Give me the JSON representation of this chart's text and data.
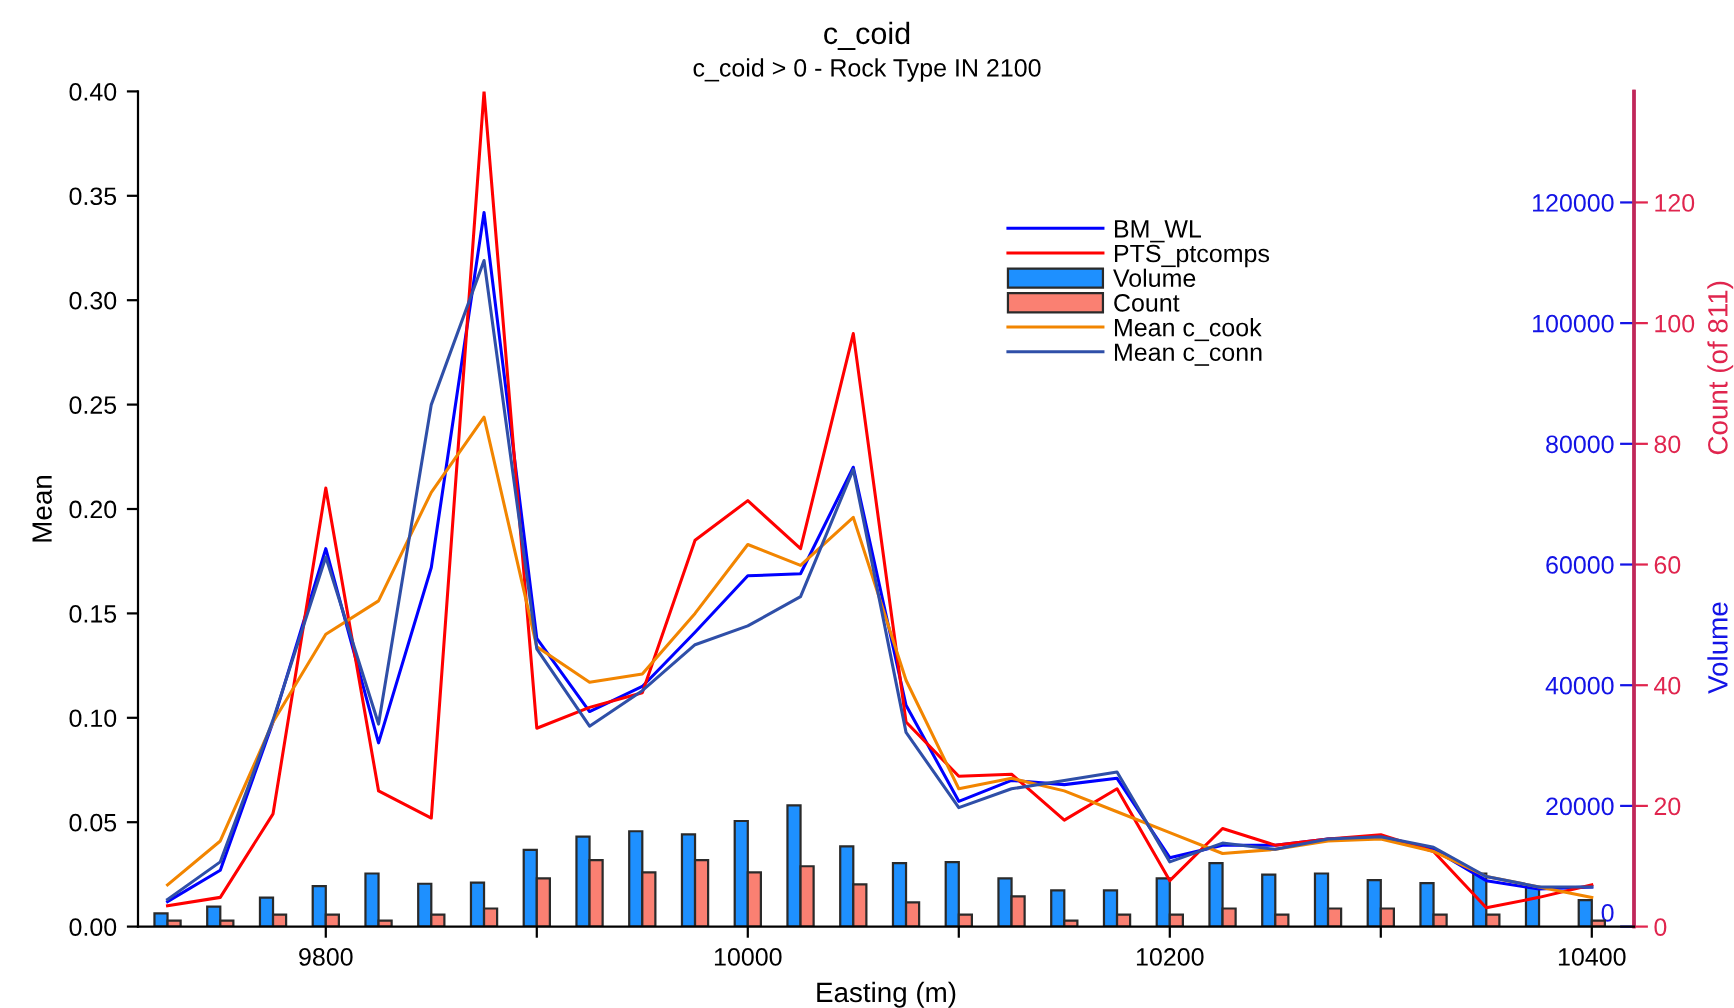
{
  "chart_data": {
    "type": "line",
    "title": "c_coid",
    "subtitle": "c_coid > 0 - Rock Type IN 2100",
    "xlabel": "Easting (m)",
    "ylabel": "Mean",
    "y2label": "Volume",
    "y3label": "Count (of 811)",
    "x": [
      9725,
      9750,
      9775,
      9800,
      9825,
      9850,
      9875,
      9900,
      9925,
      9950,
      9975,
      10000,
      10025,
      10050,
      10075,
      10100,
      10125,
      10150,
      10175,
      10200,
      10225,
      10250,
      10275,
      10300,
      10325,
      10350,
      10375,
      10400
    ],
    "xlim": [
      9711,
      10420
    ],
    "xticks": [
      9800,
      {
        "value": 9900,
        "label": null
      },
      10000,
      {
        "value": 10100,
        "label": null
      },
      10200,
      {
        "value": 10300,
        "label": null
      },
      10400
    ],
    "ylim": [
      0,
      0.4
    ],
    "yticks": [
      {
        "value": 0,
        "label": "0.00"
      },
      {
        "value": 0.05,
        "label": "0.05"
      },
      {
        "value": 0.1,
        "label": "0.10"
      },
      {
        "value": 0.15,
        "label": "0.15"
      },
      {
        "value": 0.2,
        "label": "0.20"
      },
      {
        "value": 0.25,
        "label": "0.25"
      },
      {
        "value": 0.3,
        "label": "0.30"
      },
      {
        "value": 0.35,
        "label": "0.35"
      },
      {
        "value": 0.4,
        "label": "0.40"
      }
    ],
    "y2lim": [
      0,
      138400
    ],
    "y2ticks": [
      0,
      20000,
      40000,
      60000,
      80000,
      100000,
      120000
    ],
    "y3lim": [
      0,
      138.4
    ],
    "y3ticks": [
      0,
      20,
      40,
      60,
      80,
      100,
      120
    ],
    "legend": "top right",
    "series": [
      {
        "name": "BM_WL",
        "color": "#0000ff",
        "values": [
          0.012,
          0.027,
          0.098,
          0.181,
          0.088,
          0.172,
          0.342,
          0.138,
          0.103,
          0.115,
          0.141,
          0.168,
          0.169,
          0.22,
          0.106,
          0.06,
          0.07,
          0.068,
          0.071,
          0.033,
          0.039,
          0.039,
          0.042,
          0.043,
          0.037,
          0.022,
          0.018,
          0.019
        ]
      },
      {
        "name": "PTS_ptcomps",
        "color": "#ff0000",
        "values": [
          0.01,
          0.014,
          0.054,
          0.21,
          0.065,
          0.052,
          0.4,
          0.095,
          0.105,
          0.112,
          0.185,
          0.204,
          0.181,
          0.284,
          0.098,
          0.072,
          0.073,
          0.051,
          0.066,
          0.022,
          0.047,
          0.039,
          0.042,
          0.044,
          0.036,
          0.009,
          0.014,
          0.02
        ]
      },
      {
        "name": "Volume",
        "type": "bar",
        "axis": "y2",
        "color": "#1e90ff",
        "values": [
          2200,
          3300,
          4800,
          6700,
          8800,
          7100,
          7300,
          12700,
          14900,
          15800,
          15300,
          17500,
          20100,
          13300,
          10500,
          10700,
          8000,
          6000,
          6000,
          8000,
          10500,
          8600,
          8800,
          7700,
          7200,
          8800,
          6600,
          4400
        ]
      },
      {
        "name": "Count",
        "type": "bar",
        "axis": "y3",
        "color": "#fa8072",
        "values": [
          1,
          1,
          2,
          2,
          1,
          2,
          3,
          8,
          11,
          9,
          11,
          9,
          10,
          7,
          4,
          2,
          5,
          1,
          2,
          2,
          3,
          2,
          3,
          3,
          2,
          2,
          null,
          1
        ]
      },
      {
        "name": "Mean c_cook",
        "color": "#f28500",
        "values": [
          0.02,
          0.041,
          0.098,
          0.14,
          0.156,
          0.208,
          0.244,
          0.134,
          0.117,
          0.121,
          0.15,
          0.183,
          0.173,
          0.196,
          0.118,
          0.066,
          0.071,
          0.065,
          0.055,
          0.045,
          0.035,
          0.037,
          0.041,
          0.042,
          0.036,
          0.024,
          0.019,
          0.014
        ]
      },
      {
        "name": "Mean c_conn",
        "color": "#2f4fa8",
        "values": [
          0.013,
          0.031,
          0.099,
          0.177,
          0.097,
          0.25,
          0.319,
          0.133,
          0.096,
          0.113,
          0.135,
          0.144,
          0.158,
          0.219,
          0.093,
          0.057,
          0.066,
          0.07,
          0.074,
          0.031,
          0.04,
          0.037,
          0.042,
          0.043,
          0.038,
          0.024,
          0.019,
          0.019
        ]
      }
    ]
  }
}
